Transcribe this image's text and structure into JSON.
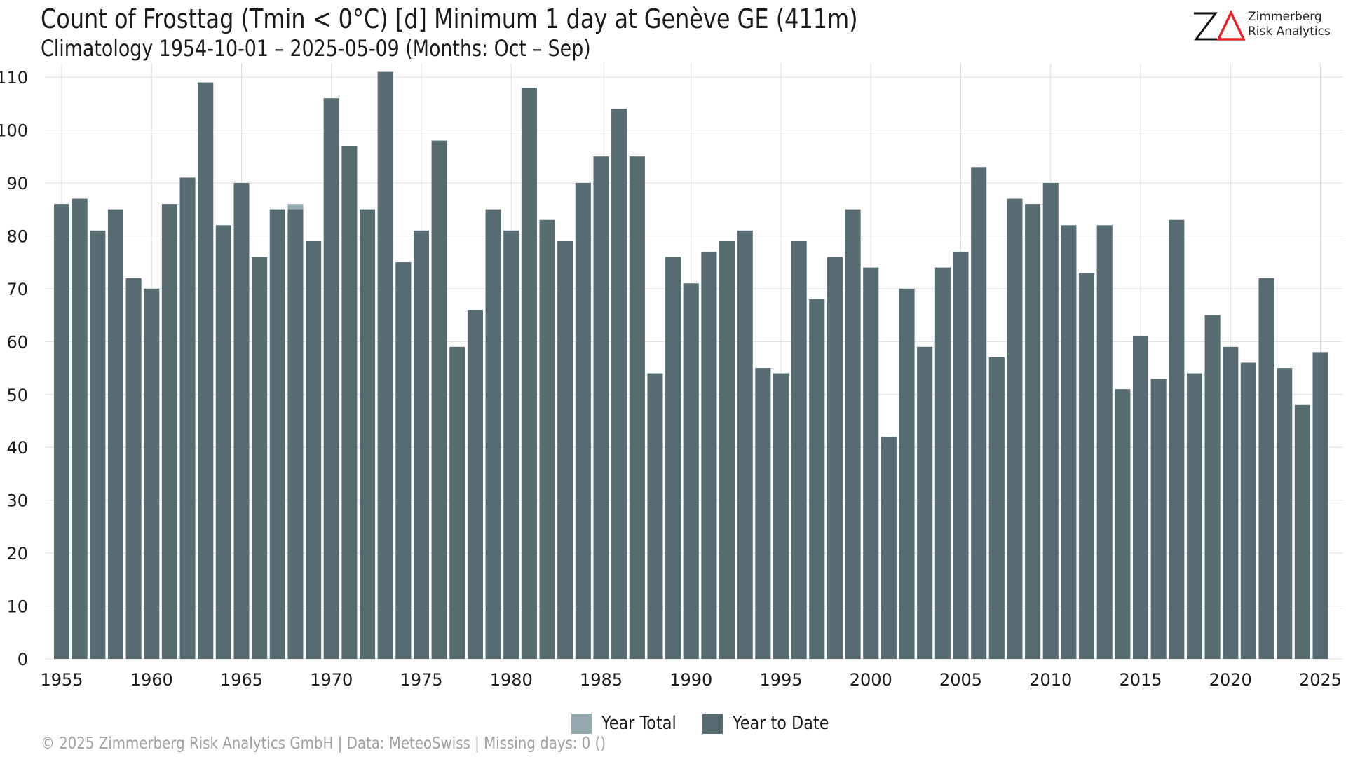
{
  "header": {
    "title": "Count of Frosttag (Tmin < 0°C) [d] Minimum 1 day at Genève  GE (411m)",
    "subtitle": "Climatology 1954-10-01 – 2025-05-09 (Months: Oct – Sep)"
  },
  "logo": {
    "line1": "Zimmerberg",
    "line2": "Risk Analytics",
    "mark_letters": "ZΔ",
    "accent_color": "#e8232a"
  },
  "footer": {
    "text": "©  2025 Zimmerberg Risk Analytics GmbH | Data: MeteoSwiss | Missing days: 0 ()"
  },
  "colors": {
    "year_total": "#95a9b1",
    "year_to_date": "#576b72",
    "grid": "#dedede"
  },
  "chart_data": {
    "type": "bar",
    "xlabel": "",
    "ylabel": "",
    "ylim": [
      0,
      112
    ],
    "y_ticks": [
      0,
      10,
      20,
      30,
      40,
      50,
      60,
      70,
      80,
      90,
      100,
      110
    ],
    "x_ticks": [
      1955,
      1960,
      1965,
      1970,
      1975,
      1980,
      1985,
      1990,
      1995,
      2000,
      2005,
      2010,
      2015,
      2020,
      2025
    ],
    "grid": true,
    "legend_position": "bottom",
    "categories": [
      1955,
      1956,
      1957,
      1958,
      1959,
      1960,
      1961,
      1962,
      1963,
      1964,
      1965,
      1966,
      1967,
      1968,
      1969,
      1970,
      1971,
      1972,
      1973,
      1974,
      1975,
      1976,
      1977,
      1978,
      1979,
      1980,
      1981,
      1982,
      1983,
      1984,
      1985,
      1986,
      1987,
      1988,
      1989,
      1990,
      1991,
      1992,
      1993,
      1994,
      1995,
      1996,
      1997,
      1998,
      1999,
      2000,
      2001,
      2002,
      2003,
      2004,
      2005,
      2006,
      2007,
      2008,
      2009,
      2010,
      2011,
      2012,
      2013,
      2014,
      2015,
      2016,
      2017,
      2018,
      2019,
      2020,
      2021,
      2022,
      2023,
      2024,
      2025
    ],
    "series": [
      {
        "name": "Year Total",
        "values": [
          86,
          87,
          81,
          85,
          72,
          70,
          86,
          91,
          109,
          82,
          90,
          76,
          85,
          86,
          79,
          106,
          97,
          85,
          111,
          75,
          81,
          98,
          59,
          66,
          85,
          81,
          108,
          83,
          79,
          90,
          95,
          104,
          95,
          54,
          76,
          71,
          77,
          79,
          81,
          55,
          54,
          79,
          68,
          76,
          85,
          74,
          42,
          70,
          59,
          74,
          77,
          93,
          57,
          87,
          86,
          90,
          82,
          73,
          82,
          51,
          61,
          53,
          83,
          54,
          65,
          59,
          56,
          72,
          55,
          48,
          58
        ]
      },
      {
        "name": "Year to Date",
        "values": [
          86,
          87,
          81,
          85,
          72,
          70,
          86,
          91,
          109,
          82,
          90,
          76,
          85,
          85,
          79,
          106,
          97,
          85,
          111,
          75,
          81,
          98,
          59,
          66,
          85,
          81,
          108,
          83,
          79,
          90,
          95,
          104,
          95,
          54,
          76,
          71,
          77,
          79,
          81,
          55,
          54,
          79,
          68,
          76,
          85,
          74,
          42,
          70,
          59,
          74,
          77,
          93,
          57,
          87,
          86,
          90,
          82,
          73,
          82,
          51,
          61,
          53,
          83,
          54,
          65,
          59,
          56,
          72,
          55,
          48,
          58
        ]
      }
    ]
  }
}
